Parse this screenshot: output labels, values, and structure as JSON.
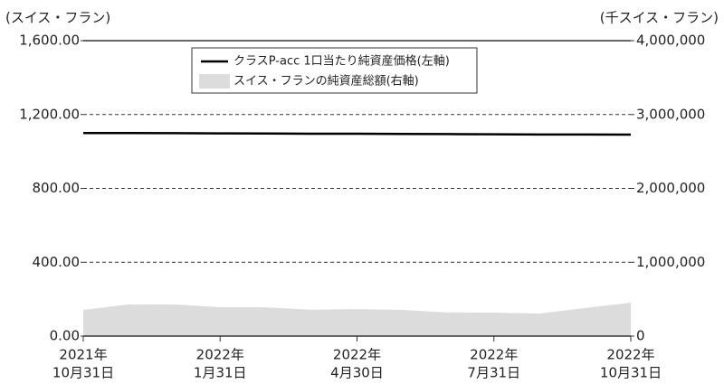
{
  "chart_data": {
    "type": "line_area",
    "y_axis_label": "(スイス・フラン)",
    "y2_axis_label": "(千スイス・フラン)",
    "categories": [
      [
        "2021年",
        "10月31日"
      ],
      null,
      null,
      [
        "2022年",
        "1月31日"
      ],
      null,
      null,
      [
        "2022年",
        "4月30日"
      ],
      null,
      null,
      [
        "2022年",
        "7月31日"
      ],
      null,
      null,
      [
        "2022年",
        "10月31日"
      ]
    ],
    "series": [
      {
        "name": "クラスP-acc 1口当たり純資産価格(左軸)",
        "color": "#000000",
        "kind": "line",
        "values": [
          1100,
          1100,
          1099,
          1098,
          1097,
          1096,
          1096,
          1095,
          1094,
          1093,
          1092,
          1092,
          1091
        ]
      },
      {
        "name": "スイス・フランの純資産総額(右軸)",
        "color": "#dcdcdc",
        "kind": "area",
        "axis": "y2",
        "values": [
          355000,
          430000,
          428000,
          392000,
          390000,
          356000,
          366000,
          355000,
          320000,
          318000,
          306000,
          380000,
          453000
        ]
      }
    ],
    "ylim": [
      0,
      1600
    ],
    "yticks": [
      {
        "value": 0,
        "label": "0.00"
      },
      {
        "value": 400,
        "label": "400.00"
      },
      {
        "value": 800,
        "label": "800.00"
      },
      {
        "value": 1200,
        "label": "1,200.00"
      },
      {
        "value": 1600,
        "label": "1,600.00"
      }
    ],
    "y2lim": [
      0,
      4000000
    ],
    "y2ticks": [
      0,
      {
        "value": 1000000,
        "label": "1,000,000"
      },
      {
        "value": 2000000,
        "label": "2,000,000"
      },
      {
        "value": 3000000,
        "label": "3,000,000"
      },
      {
        "value": 4000000,
        "label": "4,000,000"
      }
    ],
    "grid": true
  }
}
